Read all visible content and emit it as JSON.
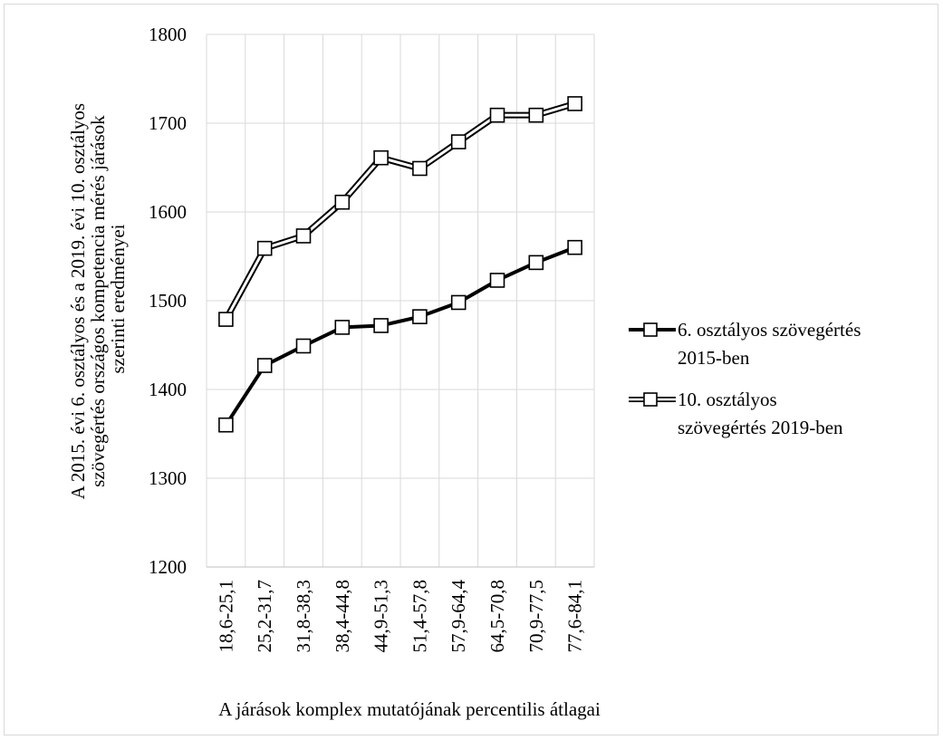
{
  "chart_data": {
    "type": "line",
    "title": "",
    "xlabel": "A járások komplex mutatójának percentilis átlagai",
    "ylabel_lines": [
      "A 2015. évi 6. osztályos és a 2019. évi  10. osztályos",
      "szövegértés országos kompetencia mérés járások",
      "szerinti eredményei"
    ],
    "categories": [
      "18,6-25,1",
      "25,2-31,7",
      "31,8-38,3",
      "38,4-44,8",
      "44,9-51,3",
      "51,4-57,8",
      "57,9-64,4",
      "64,5-70,8",
      "70,9-77,5",
      "77,6-84,1"
    ],
    "ylim": [
      1200,
      1800
    ],
    "yticks": [
      "1200",
      "1300",
      "1400",
      "1500",
      "1600",
      "1700",
      "1800"
    ],
    "grid": "on",
    "legend_position": "right",
    "series": [
      {
        "name_lines": [
          "6. osztályos szövegértés",
          "2015-ben"
        ],
        "style": "solid-black-line",
        "values": [
          1360,
          1427,
          1449,
          1470,
          1472,
          1482,
          1498,
          1523,
          1543,
          1560
        ]
      },
      {
        "name_lines": [
          "10. osztályos",
          "szövegértés 2019-ben"
        ],
        "style": "double-outline-line",
        "values": [
          1479,
          1559,
          1573,
          1611,
          1661,
          1649,
          1679,
          1709,
          1709,
          1722
        ]
      }
    ]
  }
}
